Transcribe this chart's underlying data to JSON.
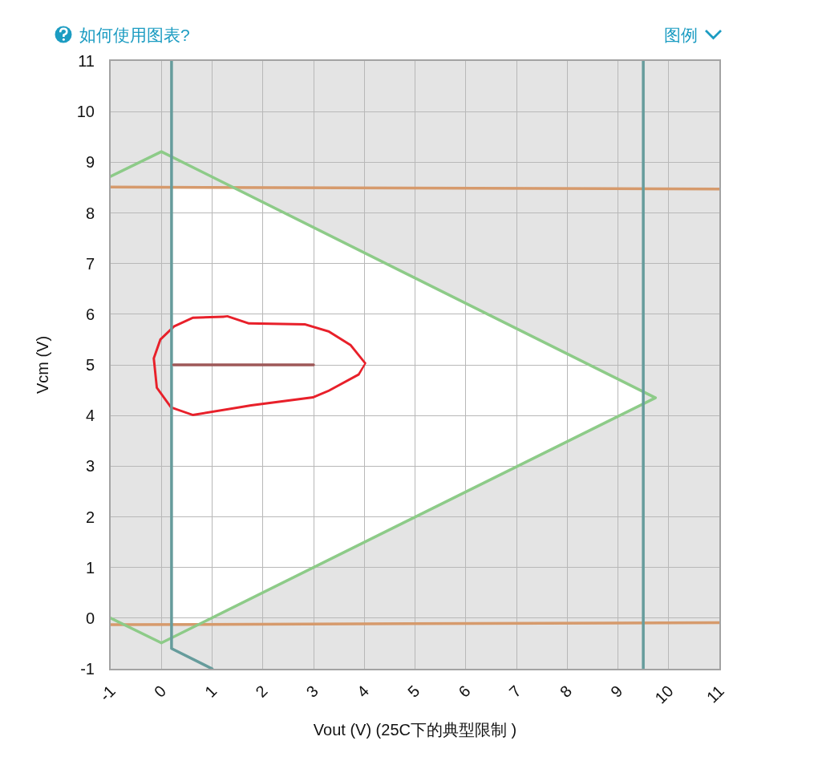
{
  "chart_data": {
    "type": "line",
    "xlabel": "Vout (V) (25C下的典型限制 )",
    "ylabel": "Vcm (V)",
    "annotations": [
      "如何使用图表?",
      "图例"
    ],
    "xlim": [
      -1,
      11
    ],
    "ylim": [
      -1,
      11
    ],
    "xticks": [
      -1,
      0,
      1,
      2,
      3,
      4,
      5,
      6,
      7,
      8,
      9,
      10,
      11
    ],
    "yticks": [
      -1,
      0,
      1,
      2,
      3,
      4,
      5,
      6,
      7,
      8,
      9,
      10,
      11
    ],
    "grid": true,
    "line_style": "solid",
    "series": [
      {
        "type": "area",
        "color": "#ffffff",
        "x": [
          0.2,
          1.43,
          9.5,
          9.5,
          0.76,
          0.2
        ],
        "values": [
          8.5,
          8.5,
          4.48,
          4.23,
          -0.12,
          -0.12
        ]
      },
      {
        "color": "#d69a6c",
        "x": [
          -1,
          11
        ],
        "values": [
          8.51,
          8.47
        ]
      },
      {
        "color": "#d69a6c",
        "x": [
          -1,
          11
        ],
        "values": [
          -0.13,
          -0.09
        ]
      },
      {
        "color": "#8dcb88",
        "x": [
          -1,
          0,
          9.74,
          0,
          -1
        ],
        "values": [
          8.72,
          9.21,
          4.35,
          -0.49,
          0.0
        ]
      },
      {
        "color": "#669c9c",
        "x": [
          0.2,
          0.2,
          1.0
        ],
        "values": [
          11,
          -0.6,
          -1
        ]
      },
      {
        "color": "#669c9c",
        "x": [
          9.5,
          9.5
        ],
        "values": [
          11,
          -1
        ]
      },
      {
        "color": "#9e5858",
        "x": [
          0.24,
          3.0
        ],
        "values": [
          5,
          5
        ]
      }
    ]
  }
}
